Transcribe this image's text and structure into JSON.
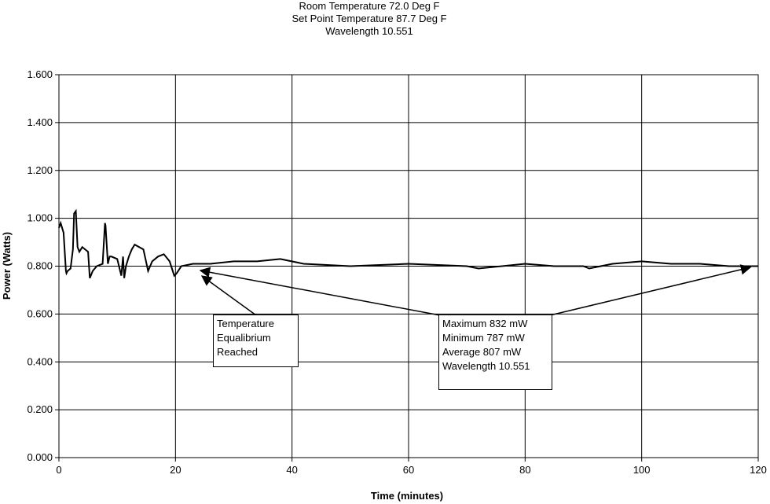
{
  "chart_data": {
    "type": "line",
    "title": [
      "Room Temperature 72.0 Deg F",
      "Set Point Temperature 87.7 Deg F",
      "Wavelength 10.551"
    ],
    "xlabel": "Time (minutes)",
    "ylabel": "Power (Watts)",
    "xlim": [
      0,
      120
    ],
    "ylim": [
      0,
      1.6
    ],
    "xticks": [
      0,
      20,
      40,
      60,
      80,
      100,
      120
    ],
    "yticks": [
      0,
      0.2,
      0.4,
      0.6,
      0.8,
      1.0,
      1.2,
      1.4,
      1.6
    ],
    "xtick_labels": [
      "0",
      "20",
      "40",
      "60",
      "80",
      "100",
      "120"
    ],
    "ytick_labels": [
      "0.000",
      "0.200",
      "0.400",
      "0.600",
      "0.800",
      "1.000",
      "1.200",
      "1.400",
      "1.600"
    ],
    "grid": true,
    "series": [
      {
        "color": "#000000",
        "x": [
          0,
          0.3,
          0.8,
          1.2,
          1.3,
          1.5,
          2.0,
          2.4,
          2.6,
          2.9,
          3.2,
          3.5,
          4.0,
          5.0,
          5.3,
          5.8,
          6.5,
          7.5,
          7.9,
          8.0,
          8.4,
          8.7,
          9.0,
          10.0,
          10.7,
          11.0,
          11.2,
          11.5,
          12.0,
          12.5,
          13.0,
          14.5,
          15.3,
          16.0,
          17.0,
          18.0,
          19.0,
          19.8,
          20.2,
          21.0,
          23.0,
          26.0,
          30.0,
          34.0,
          38.0,
          42.0,
          50.0,
          60.0,
          70.0,
          72.0,
          80.0,
          85.0,
          90.0,
          91.0,
          95.0,
          100.0,
          105.0,
          110.0,
          115.0,
          118.0,
          120.0
        ],
        "y": [
          0.96,
          0.98,
          0.94,
          0.78,
          0.77,
          0.78,
          0.79,
          0.87,
          1.02,
          1.03,
          0.88,
          0.86,
          0.88,
          0.86,
          0.75,
          0.78,
          0.8,
          0.81,
          0.98,
          0.97,
          0.81,
          0.84,
          0.84,
          0.83,
          0.76,
          0.84,
          0.75,
          0.8,
          0.84,
          0.87,
          0.89,
          0.87,
          0.78,
          0.82,
          0.84,
          0.85,
          0.82,
          0.76,
          0.77,
          0.8,
          0.81,
          0.81,
          0.82,
          0.82,
          0.83,
          0.81,
          0.8,
          0.81,
          0.8,
          0.79,
          0.81,
          0.8,
          0.8,
          0.79,
          0.81,
          0.82,
          0.81,
          0.81,
          0.8,
          0.8,
          0.8
        ]
      }
    ],
    "annotations": [
      {
        "lines": [
          "Temperature",
          "Equalibrium",
          "Reached"
        ]
      },
      {
        "lines": [
          "Maximum 832 mW",
          "Minimum 787 mW",
          "Average 807 mW",
          "Wavelength 10.551"
        ]
      }
    ]
  }
}
